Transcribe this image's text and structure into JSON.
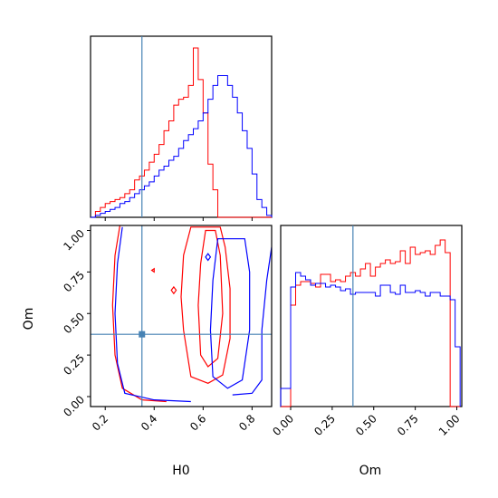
{
  "chart_data": {
    "type": "corner",
    "parameters": [
      "H0",
      "Om"
    ],
    "truth": {
      "H0": 0.35,
      "Om": 0.375
    },
    "colors": {
      "series_a": "#ff0000",
      "series_b": "#0000ff",
      "truth": "#4682b4"
    },
    "series": [
      {
        "color_key": "series_a",
        "H0_hist": {
          "edges": [
            0.14,
            0.16,
            0.18,
            0.2,
            0.22,
            0.24,
            0.26,
            0.28,
            0.3,
            0.32,
            0.34,
            0.36,
            0.38,
            0.4,
            0.42,
            0.44,
            0.46,
            0.48,
            0.5,
            0.52,
            0.54,
            0.56,
            0.58,
            0.6,
            0.62,
            0.64,
            0.66,
            0.68,
            0.7,
            0.72,
            0.74,
            0.76,
            0.78,
            0.8,
            0.82,
            0.84,
            0.86,
            0.88
          ],
          "counts": [
            0,
            0.03,
            0.05,
            0.07,
            0.08,
            0.09,
            0.1,
            0.12,
            0.14,
            0.19,
            0.21,
            0.24,
            0.28,
            0.32,
            0.37,
            0.44,
            0.49,
            0.57,
            0.6,
            0.61,
            0.67,
            0.86,
            0.7,
            0.53,
            0.27,
            0.14,
            0,
            0,
            0,
            0,
            0,
            0,
            0,
            0,
            0,
            0,
            0
          ]
        },
        "Om_hist": {
          "edges": [
            -0.06,
            -0.03,
            0.0,
            0.03,
            0.06,
            0.09,
            0.12,
            0.15,
            0.18,
            0.21,
            0.24,
            0.27,
            0.3,
            0.33,
            0.36,
            0.39,
            0.42,
            0.45,
            0.48,
            0.51,
            0.54,
            0.57,
            0.6,
            0.63,
            0.66,
            0.69,
            0.72,
            0.75,
            0.78,
            0.81,
            0.84,
            0.87,
            0.9,
            0.93,
            0.96,
            0.99,
            1.02
          ],
          "counts": [
            0,
            0,
            0.56,
            0.67,
            0.69,
            0.69,
            0.68,
            0.66,
            0.73,
            0.73,
            0.69,
            0.7,
            0.69,
            0.72,
            0.74,
            0.72,
            0.76,
            0.79,
            0.72,
            0.77,
            0.79,
            0.81,
            0.79,
            0.8,
            0.86,
            0.79,
            0.88,
            0.84,
            0.85,
            0.86,
            0.84,
            0.89,
            0.92,
            0.85,
            0,
            0
          ]
        },
        "contours": [
          [
            [
              0.55,
              1.02
            ],
            [
              0.52,
              0.85
            ],
            [
              0.51,
              0.6
            ],
            [
              0.52,
              0.4
            ],
            [
              0.55,
              0.12
            ],
            [
              0.62,
              0.08
            ],
            [
              0.68,
              0.13
            ],
            [
              0.71,
              0.35
            ],
            [
              0.71,
              0.65
            ],
            [
              0.69,
              0.9
            ],
            [
              0.67,
              1.02
            ],
            [
              0.55,
              1.02
            ]
          ],
          [
            [
              0.61,
              1.0
            ],
            [
              0.59,
              0.8
            ],
            [
              0.58,
              0.55
            ],
            [
              0.59,
              0.25
            ],
            [
              0.62,
              0.18
            ],
            [
              0.66,
              0.23
            ],
            [
              0.68,
              0.5
            ],
            [
              0.67,
              0.85
            ],
            [
              0.65,
              1.0
            ],
            [
              0.61,
              1.0
            ]
          ],
          [
            [
              0.4,
              0.75
            ],
            [
              0.39,
              0.76
            ],
            [
              0.4,
              0.77
            ],
            [
              0.4,
              0.75
            ]
          ],
          [
            [
              0.48,
              0.62
            ],
            [
              0.47,
              0.64
            ],
            [
              0.48,
              0.66
            ],
            [
              0.49,
              0.64
            ],
            [
              0.48,
              0.62
            ]
          ]
        ],
        "contour_open_left": [
          [
            0.26,
            1.03
          ],
          [
            0.24,
            0.85
          ],
          [
            0.23,
            0.55
          ],
          [
            0.24,
            0.25
          ],
          [
            0.27,
            0.05
          ],
          [
            0.35,
            -0.02
          ],
          [
            0.45,
            -0.03
          ]
        ]
      },
      {
        "color_key": "series_b",
        "H0_hist": {
          "edges": [
            0.14,
            0.16,
            0.18,
            0.2,
            0.22,
            0.24,
            0.26,
            0.28,
            0.3,
            0.32,
            0.34,
            0.36,
            0.38,
            0.4,
            0.42,
            0.44,
            0.46,
            0.48,
            0.5,
            0.52,
            0.54,
            0.56,
            0.58,
            0.6,
            0.62,
            0.64,
            0.66,
            0.68,
            0.7,
            0.72,
            0.74,
            0.76,
            0.78,
            0.8,
            0.82,
            0.84,
            0.86,
            0.88
          ],
          "counts": [
            0,
            0.01,
            0.02,
            0.03,
            0.04,
            0.05,
            0.07,
            0.08,
            0.1,
            0.12,
            0.14,
            0.16,
            0.18,
            0.21,
            0.24,
            0.26,
            0.29,
            0.31,
            0.35,
            0.39,
            0.42,
            0.45,
            0.49,
            0.53,
            0.6,
            0.67,
            0.72,
            0.72,
            0.67,
            0.61,
            0.53,
            0.44,
            0.35,
            0.22,
            0.09,
            0.05,
            0.01
          ]
        },
        "Om_hist": {
          "edges": [
            -0.06,
            -0.03,
            0.0,
            0.03,
            0.06,
            0.09,
            0.12,
            0.15,
            0.18,
            0.21,
            0.24,
            0.27,
            0.3,
            0.33,
            0.36,
            0.39,
            0.42,
            0.45,
            0.48,
            0.51,
            0.54,
            0.57,
            0.6,
            0.63,
            0.66,
            0.69,
            0.72,
            0.75,
            0.78,
            0.81,
            0.84,
            0.87,
            0.9,
            0.93,
            0.96,
            0.99,
            1.02
          ],
          "counts": [
            0.1,
            0.1,
            0.66,
            0.74,
            0.72,
            0.7,
            0.67,
            0.68,
            0.68,
            0.66,
            0.67,
            0.66,
            0.64,
            0.65,
            0.62,
            0.63,
            0.63,
            0.63,
            0.63,
            0.61,
            0.67,
            0.67,
            0.63,
            0.62,
            0.67,
            0.63,
            0.63,
            0.64,
            0.63,
            0.61,
            0.63,
            0.63,
            0.61,
            0.61,
            0.59,
            0.33
          ]
        },
        "contours": [
          [
            [
              0.62,
              0.82
            ],
            [
              0.61,
              0.84
            ],
            [
              0.62,
              0.86
            ],
            [
              0.63,
              0.84
            ],
            [
              0.62,
              0.82
            ]
          ],
          [
            [
              0.66,
              0.95
            ],
            [
              0.64,
              0.7
            ],
            [
              0.63,
              0.4
            ],
            [
              0.64,
              0.12
            ],
            [
              0.7,
              0.05
            ],
            [
              0.76,
              0.1
            ],
            [
              0.79,
              0.4
            ],
            [
              0.79,
              0.75
            ],
            [
              0.77,
              0.95
            ],
            [
              0.66,
              0.95
            ]
          ]
        ],
        "contour_open_left": [
          [
            0.27,
            1.02
          ],
          [
            0.25,
            0.8
          ],
          [
            0.24,
            0.5
          ],
          [
            0.25,
            0.2
          ],
          [
            0.28,
            0.02
          ],
          [
            0.4,
            -0.02
          ],
          [
            0.55,
            -0.03
          ]
        ],
        "contour_open_right": [
          [
            0.88,
            0.9
          ],
          [
            0.86,
            0.7
          ],
          [
            0.84,
            0.4
          ],
          [
            0.84,
            0.1
          ],
          [
            0.8,
            0.02
          ],
          [
            0.72,
            0.01
          ]
        ]
      }
    ],
    "axes": {
      "H0": {
        "label": "H0",
        "range": [
          0.14,
          0.88
        ],
        "ticks": [
          0.2,
          0.4,
          0.6,
          0.8
        ],
        "tick_labels": [
          "0.2",
          "0.4",
          "0.6",
          "0.8"
        ]
      },
      "Om": {
        "label": "Om",
        "range": [
          -0.06,
          1.03
        ],
        "ticks": [
          0.0,
          0.25,
          0.5,
          0.75,
          1.0
        ],
        "tick_labels": [
          "0.00",
          "0.25",
          "0.50",
          "0.75",
          "1.00"
        ]
      }
    },
    "grid": false,
    "legend": "none"
  }
}
